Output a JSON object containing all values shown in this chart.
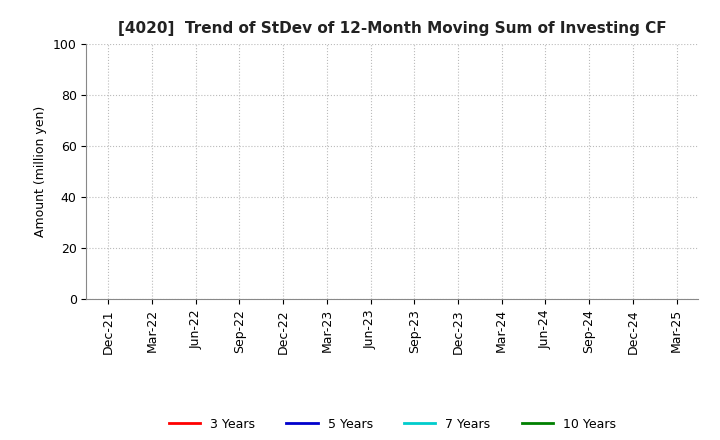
{
  "title": "[4020]  Trend of StDev of 12-Month Moving Sum of Investing CF",
  "ylabel": "Amount (million yen)",
  "ylim": [
    0,
    100
  ],
  "yticks": [
    0,
    20,
    40,
    60,
    80,
    100
  ],
  "background_color": "#ffffff",
  "grid_color": "#bbbbbb",
  "title_fontsize": 11,
  "axis_fontsize": 9,
  "legend_entries": [
    {
      "label": "3 Years",
      "color": "#ff0000"
    },
    {
      "label": "5 Years",
      "color": "#0000cc"
    },
    {
      "label": "7 Years",
      "color": "#00cccc"
    },
    {
      "label": "10 Years",
      "color": "#008000"
    }
  ],
  "xtick_labels": [
    "Dec-21",
    "Mar-22",
    "Jun-22",
    "Sep-22",
    "Dec-22",
    "Mar-23",
    "Jun-23",
    "Sep-23",
    "Dec-23",
    "Mar-24",
    "Jun-24",
    "Sep-24",
    "Dec-24",
    "Mar-25"
  ],
  "xtick_positions": [
    0,
    1,
    2,
    3,
    4,
    5,
    6,
    7,
    8,
    9,
    10,
    11,
    12,
    13
  ]
}
